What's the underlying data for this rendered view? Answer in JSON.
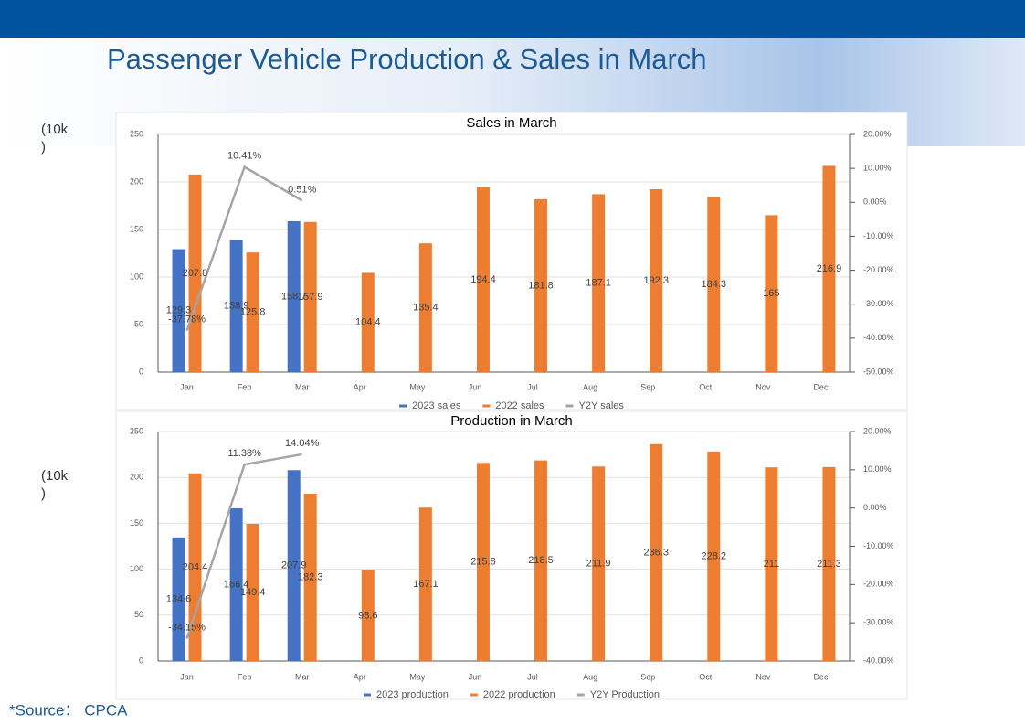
{
  "title": "Passenger Vehicle Production & Sales in March",
  "unit_labels": [
    "(10k\n)",
    "(10k\n)"
  ],
  "source": "*Source： CPCA",
  "chart_data": [
    {
      "type": "bar",
      "title": "Sales in March",
      "categories": [
        "Jan",
        "Feb",
        "Mar",
        "Apr",
        "May",
        "Jun",
        "Jul",
        "Aug",
        "Sep",
        "Oct",
        "Nov",
        "Dec"
      ],
      "series": [
        {
          "name": "2023 sales",
          "color": "#4472c4",
          "values": [
            129.3,
            138.9,
            158.7,
            null,
            null,
            null,
            null,
            null,
            null,
            null,
            null,
            null
          ]
        },
        {
          "name": "2022 sales",
          "color": "#ed7d31",
          "values": [
            207.8,
            125.8,
            157.9,
            104.4,
            135.4,
            194.4,
            181.8,
            187.1,
            192.3,
            184.3,
            165,
            216.9
          ]
        },
        {
          "name": "Y2Y sales",
          "color": "#a5a5a5",
          "axis": "y2",
          "values": [
            -37.78,
            10.41,
            0.51,
            null,
            null,
            null,
            null,
            null,
            null,
            null,
            null,
            null
          ],
          "value_labels": [
            "-37.78%",
            "10.41%",
            "0.51%",
            null,
            null,
            null,
            null,
            null,
            null,
            null,
            null,
            null
          ]
        }
      ],
      "ylim": [
        0,
        250
      ],
      "yticks": [
        0,
        50,
        100,
        150,
        200,
        250
      ],
      "y2lim": [
        -50,
        20
      ],
      "y2ticks": [
        {
          "value": 20,
          "label": "20.00%"
        },
        {
          "value": 10,
          "label": "10.00%"
        },
        {
          "value": 0,
          "label": "0.00%"
        },
        {
          "value": -10,
          "label": "-10.00%"
        },
        {
          "value": -20,
          "label": "-20.00%"
        },
        {
          "value": -30,
          "label": "-30.00%"
        },
        {
          "value": -40,
          "label": "-40.00%"
        },
        {
          "value": -50,
          "label": "-50.00%"
        }
      ],
      "grid": true,
      "legend": "bottom"
    },
    {
      "type": "bar",
      "title": "Production in March",
      "categories": [
        "Jan",
        "Feb",
        "Mar",
        "Apr",
        "May",
        "Jun",
        "Jul",
        "Aug",
        "Sep",
        "Oct",
        "Nov",
        "Dec"
      ],
      "series": [
        {
          "name": "2023 production",
          "color": "#4472c4",
          "values": [
            134.6,
            166.4,
            207.9,
            null,
            null,
            null,
            null,
            null,
            null,
            null,
            null,
            null
          ]
        },
        {
          "name": "2022 production",
          "color": "#ed7d31",
          "values": [
            204.4,
            149.4,
            182.3,
            98.6,
            167.1,
            215.8,
            218.5,
            211.9,
            236.3,
            228.2,
            211,
            211.3
          ]
        },
        {
          "name": "Y2Y Production",
          "color": "#a5a5a5",
          "axis": "y2",
          "values": [
            -34.15,
            11.38,
            14.04,
            null,
            null,
            null,
            null,
            null,
            null,
            null,
            null,
            null
          ],
          "value_labels": [
            "-34.15%",
            "11.38%",
            "14.04%",
            null,
            null,
            null,
            null,
            null,
            null,
            null,
            null,
            null
          ]
        }
      ],
      "ylim": [
        0,
        250
      ],
      "yticks": [
        0,
        50,
        100,
        150,
        200,
        250
      ],
      "y2lim": [
        -40,
        20
      ],
      "y2ticks": [
        {
          "value": 20,
          "label": "20.00%"
        },
        {
          "value": 10,
          "label": "10.00%"
        },
        {
          "value": 0,
          "label": "0.00%"
        },
        {
          "value": -10,
          "label": "-10.00%"
        },
        {
          "value": -20,
          "label": "-20.00%"
        },
        {
          "value": -30,
          "label": "-30.00%"
        },
        {
          "value": -40,
          "label": "-40.00%"
        }
      ],
      "grid": true,
      "legend": "bottom"
    }
  ]
}
